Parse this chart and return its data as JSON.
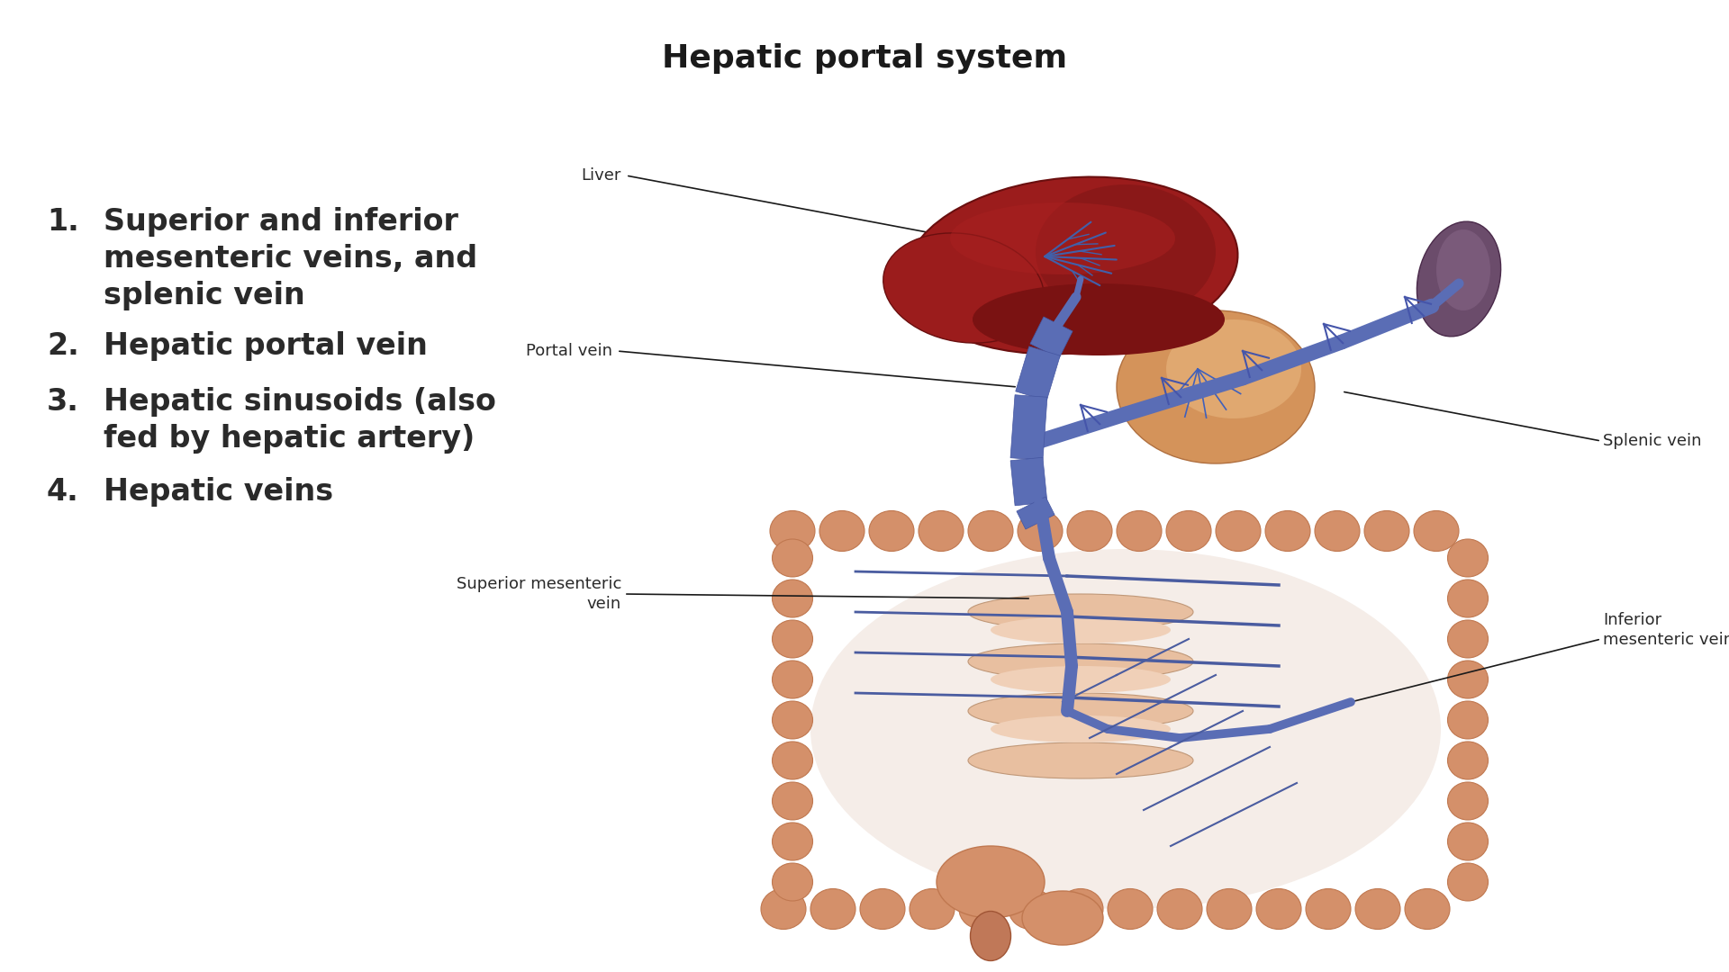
{
  "title": "Hepatic portal system",
  "title_fontsize": 26,
  "title_fontweight": "bold",
  "title_color": "#1a1a1a",
  "background_color": "#ffffff",
  "text_color": "#2a2a2a",
  "list_items": [
    "Superior and inferior\nmesenteric veins, and\nsplenic vein",
    "Hepatic portal vein",
    "Hepatic sinusoids (also\nfed by hepatic artery)",
    "Hepatic veins"
  ],
  "list_fontsize": 24,
  "label_fontsize": 13,
  "label_color": "#2a2a2a",
  "line_color": "#1a1a1a"
}
